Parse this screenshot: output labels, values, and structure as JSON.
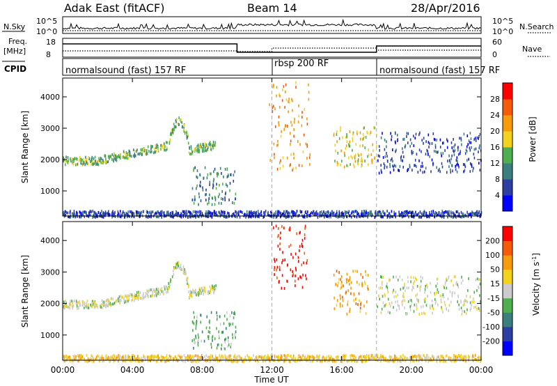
{
  "header": {
    "radar": "Adak East (fitACF)",
    "beam": "Beam 14",
    "date": "28/Apr/2016"
  },
  "noise_panel": {
    "left_label": "N.Sky",
    "right_label": "N.Search",
    "tick_top": "10^5",
    "tick_bottom": "10^0"
  },
  "freq_panel": {
    "left_label": "Freq.",
    "left_unit": "[MHz]",
    "right_label": "Nave",
    "left_ticks": [
      "18",
      "8"
    ],
    "right_ticks": [
      "60",
      "0"
    ]
  },
  "cpid_panel": {
    "label": "CPID",
    "segments": [
      {
        "name": "normalsound (fast) 157 RF",
        "start_hour": 0,
        "end_hour": 12
      },
      {
        "name": "rbsp 200 RF",
        "start_hour": 12,
        "end_hour": 18
      },
      {
        "name": "normalsound (fast) 157 RF",
        "start_hour": 18,
        "end_hour": 24
      }
    ]
  },
  "chart_data": [
    {
      "type": "heatmap",
      "name": "power",
      "ylabel": "Slant Range [km]",
      "yticks": [
        "1000",
        "2000",
        "3000",
        "4000"
      ],
      "ylim": [
        200,
        4600
      ],
      "colorbar_label": "Power [dB]",
      "colorbar_ticks": [
        "28",
        "24",
        "20",
        "16",
        "12",
        "8",
        "4"
      ],
      "colors": [
        "#0000ff",
        "#2d3fa0",
        "#3c7f7f",
        "#4fae4f",
        "#f2d21d",
        "#f79a0c",
        "#f55a0a",
        "#ff0000"
      ],
      "regions": [
        {
          "x": [
            0.0,
            8.8
          ],
          "range": [
            1900,
            3100
          ],
          "level": 3
        },
        {
          "x": [
            7.4,
            9.9
          ],
          "range": [
            600,
            1800
          ],
          "level": 2
        },
        {
          "x": [
            11.8,
            14.2
          ],
          "range": [
            1700,
            4500
          ],
          "level": 5
        },
        {
          "x": [
            15.5,
            18.0
          ],
          "range": [
            1800,
            3100
          ],
          "level": 4
        },
        {
          "x": [
            18.0,
            24.0
          ],
          "range": [
            1600,
            2900
          ],
          "level": 1
        },
        {
          "x": [
            0.0,
            24.0
          ],
          "range": [
            200,
            400
          ],
          "level": 1
        }
      ]
    },
    {
      "type": "heatmap",
      "name": "velocity",
      "ylabel": "Slant Range [km]",
      "yticks": [
        "1000",
        "2000",
        "3000",
        "4000"
      ],
      "ylim": [
        200,
        4600
      ],
      "colorbar_label": "Velocity [m s^-1]",
      "colorbar_ticks": [
        "200",
        "100",
        "50",
        "15",
        "-15",
        "-50",
        "-100",
        "-200"
      ],
      "colors": [
        "#0000ff",
        "#2d3fa0",
        "#3c7f7f",
        "#4fae4f",
        "#cccccc",
        "#f2d21d",
        "#f79a0c",
        "#f55a0a",
        "#ff0000"
      ],
      "regions": [
        {
          "x": [
            0.0,
            8.8
          ],
          "range": [
            1900,
            3100
          ],
          "level": 4
        },
        {
          "x": [
            7.4,
            9.9
          ],
          "range": [
            600,
            1800
          ],
          "level": 3
        },
        {
          "x": [
            12.0,
            14.0
          ],
          "range": [
            2500,
            4500
          ],
          "level": 8
        },
        {
          "x": [
            15.5,
            17.5
          ],
          "range": [
            1700,
            3100
          ],
          "level": 6
        },
        {
          "x": [
            18.0,
            24.0
          ],
          "range": [
            1700,
            2900
          ],
          "level": 4
        },
        {
          "x": [
            0.0,
            24.0
          ],
          "range": [
            200,
            400
          ],
          "level": 5
        }
      ]
    }
  ],
  "x_axis": {
    "label": "Time UT",
    "ticks": [
      "00:00",
      "04:00",
      "08:00",
      "12:00",
      "16:00",
      "20:00",
      "00:00"
    ],
    "xlim": [
      0,
      24
    ]
  }
}
